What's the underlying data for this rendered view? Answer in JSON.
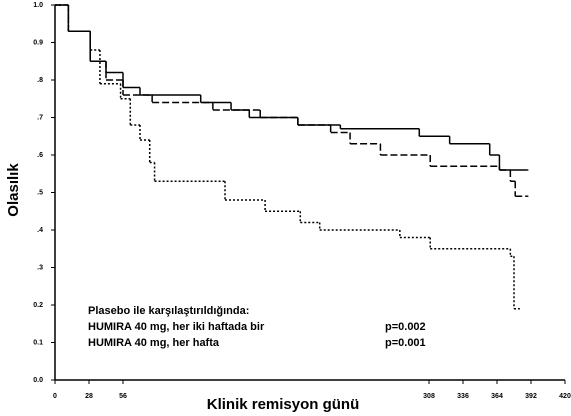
{
  "chart_data": {
    "type": "step",
    "y_label": "Olasılık",
    "x_label": "Klinik remisyon günü",
    "xlim": [
      0,
      420
    ],
    "ylim": [
      0,
      1
    ],
    "xticks": [
      0,
      28,
      56,
      308,
      336,
      364,
      392,
      420
    ],
    "yticks": [
      {
        "value": 0,
        "label": "0.0"
      },
      {
        "value": 0.1,
        "label": "0.1"
      },
      {
        "value": 0.2,
        "label": "0.2"
      },
      {
        "value": 0.3,
        "label": ".3"
      },
      {
        "value": 0.4,
        "label": ".4"
      },
      {
        "value": 0.5,
        "label": ".5"
      },
      {
        "value": 0.6,
        "label": ".6"
      },
      {
        "value": 0.7,
        "label": ".7"
      },
      {
        "value": 0.8,
        "label": ".8"
      },
      {
        "value": 0.9,
        "label": "0.9"
      },
      {
        "value": 1,
        "label": "1.0"
      }
    ],
    "annotations": [
      {
        "text": "Plasebo ile karşılaştırıldığında:"
      },
      {
        "text": "HUMIRA 40 mg, her iki haftada bir",
        "p": "p=0.002"
      },
      {
        "text": "HUMIRA 40 mg, her hafta",
        "p": "p=0.001"
      }
    ],
    "series": [
      {
        "color": "#000000",
        "style": "solid",
        "x": [
          0,
          11,
          29,
          42,
          56,
          70,
          120,
          145,
          160,
          200,
          235,
          300,
          325,
          358,
          366,
          389
        ],
        "values": [
          1,
          0.93,
          0.85,
          0.82,
          0.78,
          0.76,
          0.74,
          0.72,
          0.7,
          0.68,
          0.67,
          0.65,
          0.63,
          0.6,
          0.56,
          0.56
        ]
      },
      {
        "color": "#000000",
        "style": "dashed",
        "x": [
          0,
          11,
          29,
          42,
          56,
          80,
          130,
          169,
          200,
          227,
          243,
          268,
          309,
          366,
          375,
          379,
          389
        ],
        "values": [
          1,
          0.93,
          0.85,
          0.8,
          0.76,
          0.74,
          0.72,
          0.7,
          0.68,
          0.66,
          0.63,
          0.6,
          0.57,
          0.56,
          0.53,
          0.49,
          0.49
        ]
      },
      {
        "color": "#000000",
        "style": "dotted",
        "x": [
          0,
          11,
          29,
          37,
          54,
          62,
          70,
          78,
          82,
          140,
          173,
          202,
          218,
          284,
          309,
          375,
          378,
          382
        ],
        "values": [
          1,
          0.93,
          0.88,
          0.79,
          0.75,
          0.68,
          0.64,
          0.58,
          0.53,
          0.48,
          0.45,
          0.42,
          0.4,
          0.38,
          0.35,
          0.33,
          0.19,
          0.19
        ]
      }
    ]
  }
}
